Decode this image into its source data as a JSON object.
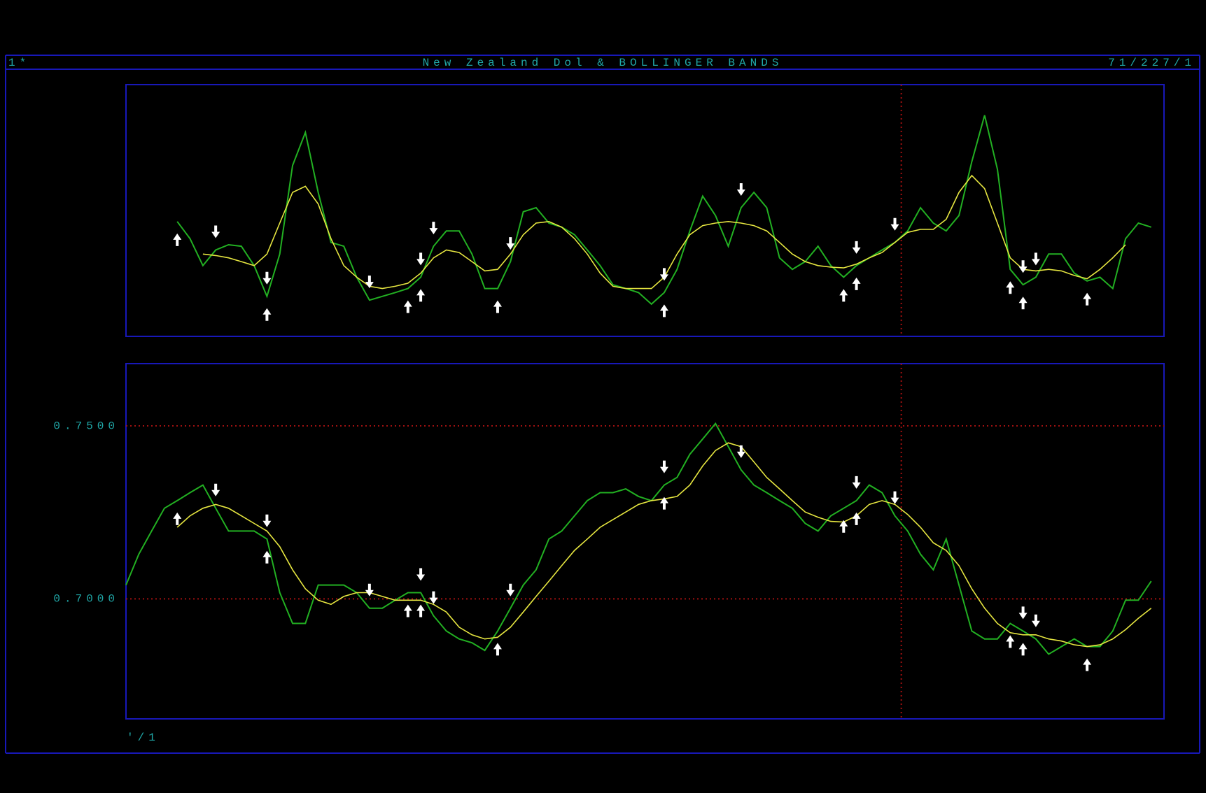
{
  "header": {
    "left": "1*",
    "title": "New Zealand Dol & BOLLINGER BANDS",
    "right": "71/227/1"
  },
  "footer_label": "'/1",
  "chart_data": [
    {
      "type": "line",
      "xlim": [
        0,
        81
      ],
      "ylim": [
        0,
        100
      ],
      "marker_x": 60.5,
      "buy_signals": [
        4,
        11,
        22,
        23,
        29,
        42,
        56,
        57,
        69,
        70,
        75
      ],
      "sell_signals": [
        7,
        11,
        19,
        23,
        24,
        30,
        42,
        48,
        57,
        60,
        70,
        71
      ],
      "series": [
        {
          "color": "#22b022",
          "values": [
            null,
            null,
            null,
            null,
            45.6,
            38.8,
            28.1,
            34.3,
            36.4,
            35.8,
            28.1,
            15.9,
            32.7,
            67.9,
            81.0,
            57.2,
            37.3,
            35.8,
            23.5,
            14.4,
            15.9,
            17.4,
            19.0,
            23.5,
            35.8,
            41.9,
            41.9,
            32.7,
            19.0,
            19.0,
            29.7,
            49.5,
            51.1,
            45.0,
            43.4,
            40.4,
            34.3,
            28.1,
            20.5,
            19.0,
            17.4,
            12.8,
            17.4,
            26.6,
            41.9,
            55.7,
            48.0,
            35.8,
            51.1,
            57.2,
            51.1,
            31.2,
            26.6,
            29.7,
            35.8,
            28.1,
            23.5,
            28.1,
            31.2,
            34.3,
            37.3,
            41.9,
            51.1,
            45.0,
            41.9,
            48.0,
            69.4,
            87.8,
            66.4,
            26.6,
            20.5,
            23.5,
            32.7,
            32.7,
            25.1,
            22.0,
            23.5,
            19.0,
            38.8,
            45.0,
            43.4
          ]
        },
        {
          "color": "#e6e640",
          "values": [
            null,
            null,
            null,
            null,
            null,
            null,
            32.7,
            32.1,
            31.2,
            29.7,
            28.1,
            32.7,
            45.0,
            57.2,
            59.6,
            52.6,
            38.8,
            28.1,
            23.5,
            19.9,
            19.0,
            19.9,
            21.1,
            25.1,
            31.2,
            34.3,
            33.3,
            29.7,
            26.0,
            26.6,
            32.7,
            40.4,
            45.0,
            45.6,
            43.4,
            38.8,
            32.7,
            25.1,
            19.9,
            19.0,
            19.0,
            19.0,
            23.5,
            32.7,
            40.4,
            44.0,
            45.0,
            45.6,
            45.0,
            44.0,
            41.9,
            37.3,
            32.7,
            29.7,
            28.1,
            27.5,
            27.2,
            28.7,
            31.2,
            33.3,
            37.3,
            41.3,
            42.5,
            42.5,
            46.5,
            57.2,
            63.9,
            58.7,
            45.0,
            31.2,
            26.6,
            26.0,
            26.6,
            26.0,
            24.2,
            22.9,
            26.6,
            31.2,
            36.4,
            null,
            null
          ]
        }
      ]
    },
    {
      "type": "line",
      "xlim": [
        0,
        81
      ],
      "ylim": [
        0.6653,
        0.768
      ],
      "marker_x": 60.5,
      "grid": true,
      "yticks": [
        {
          "value": 0.75,
          "label": "0.7500"
        },
        {
          "value": 0.7,
          "label": "0.7000"
        }
      ],
      "buy_signals": [
        4,
        11,
        22,
        23,
        29,
        42,
        56,
        57,
        69,
        70,
        75
      ],
      "sell_signals": [
        7,
        11,
        19,
        23,
        24,
        30,
        42,
        48,
        57,
        60,
        70,
        71
      ],
      "series": [
        {
          "color": "#22b022",
          "values": [
            0.704,
            0.7129,
            0.7196,
            0.7262,
            0.7284,
            0.7307,
            0.7329,
            0.7262,
            0.7196,
            0.7196,
            0.7196,
            0.7173,
            0.7018,
            0.6929,
            0.6929,
            0.704,
            0.704,
            0.704,
            0.7018,
            0.6973,
            0.6973,
            0.6996,
            0.7018,
            0.7018,
            0.6951,
            0.6907,
            0.6884,
            0.6873,
            0.6851,
            0.6907,
            0.6973,
            0.704,
            0.7084,
            0.7173,
            0.7196,
            0.724,
            0.7284,
            0.7307,
            0.7307,
            0.7318,
            0.7296,
            0.7284,
            0.7329,
            0.7351,
            0.7418,
            0.7462,
            0.7507,
            0.744,
            0.7373,
            0.7329,
            0.7307,
            0.7284,
            0.7262,
            0.7218,
            0.7196,
            0.724,
            0.7262,
            0.7284,
            0.7329,
            0.7307,
            0.724,
            0.7196,
            0.7129,
            0.7084,
            0.7173,
            0.704,
            0.6907,
            0.6884,
            0.6884,
            0.6929,
            0.6907,
            0.6884,
            0.684,
            0.6862,
            0.6884,
            0.6862,
            0.6862,
            0.6907,
            0.6996,
            0.6996,
            0.7051
          ]
        },
        {
          "color": "#e6e640",
          "values": [
            null,
            null,
            null,
            null,
            0.7207,
            0.724,
            0.7262,
            0.7273,
            0.7262,
            0.724,
            0.7218,
            0.7196,
            0.7151,
            0.7084,
            0.7029,
            0.6996,
            0.6984,
            0.7007,
            0.7018,
            0.7018,
            0.7007,
            0.6996,
            0.6996,
            0.6996,
            0.6984,
            0.6962,
            0.6918,
            0.6896,
            0.6884,
            0.6889,
            0.6918,
            0.6962,
            0.7007,
            0.7051,
            0.7096,
            0.714,
            0.7173,
            0.7207,
            0.7229,
            0.7251,
            0.7273,
            0.7284,
            0.7289,
            0.7296,
            0.7329,
            0.7384,
            0.7429,
            0.7451,
            0.744,
            0.7396,
            0.7351,
            0.7318,
            0.7284,
            0.7251,
            0.7236,
            0.7224,
            0.7222,
            0.724,
            0.7273,
            0.7284,
            0.7273,
            0.7244,
            0.7207,
            0.7162,
            0.714,
            0.7096,
            0.7029,
            0.6973,
            0.6929,
            0.6902,
            0.6896,
            0.6896,
            0.6884,
            0.6878,
            0.6867,
            0.6862,
            0.6867,
            0.6884,
            0.6911,
            0.6944,
            0.6973
          ]
        }
      ]
    }
  ]
}
